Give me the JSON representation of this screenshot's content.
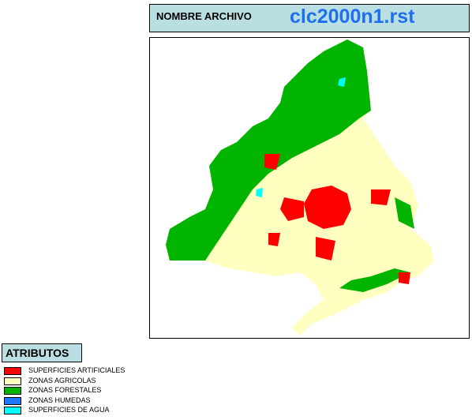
{
  "header": {
    "label": "NOMBRE ARCHIVO",
    "filename": "clc2000n1.rst"
  },
  "legend": {
    "title": "ATRIBUTOS",
    "items": [
      {
        "label": "SUPERFICIES ARTIFICIALES",
        "color": "#ff0000"
      },
      {
        "label": "ZONAS AGRICOLAS",
        "color": "#ffffc0"
      },
      {
        "label": "ZONAS FORESTALES",
        "color": "#00b400"
      },
      {
        "label": "ZONAS HUMEDAS",
        "color": "#1e78ff"
      },
      {
        "label": "SUPERFICIES DE AGUA",
        "color": "#00ffff"
      }
    ]
  }
}
